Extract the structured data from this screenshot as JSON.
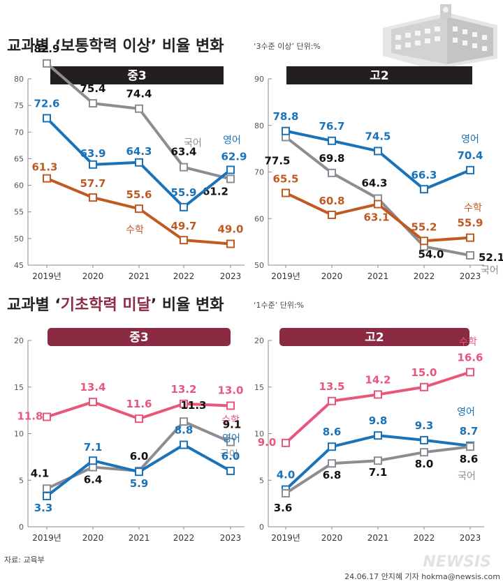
{
  "sections": [
    {
      "title_pre": "교과별 ‘",
      "title_hl": "보통학력 이상",
      "title_post": "’ 비율 변화",
      "unit": "‘3수준 이상’ 단위:%",
      "banner_color": "#231f20",
      "charts": [
        {
          "banner": "중3",
          "ylim": [
            45,
            80
          ],
          "ytick_step": 5,
          "x": [
            "2019년",
            "2020",
            "2021",
            "2022",
            "2023"
          ],
          "series": [
            {
              "name": "국어",
              "color": "#8c8c94",
              "values": [
                82.9,
                75.4,
                74.4,
                63.4,
                61.2
              ],
              "labels": [
                "82.9",
                "75.4",
                "74.4",
                "63.4",
                "61.2"
              ]
            },
            {
              "name": "영어",
              "color": "#1a72b9",
              "values": [
                72.6,
                63.9,
                64.3,
                55.9,
                62.9
              ],
              "labels": [
                "72.6",
                "63.9",
                "64.3",
                "55.9",
                "62.9"
              ]
            },
            {
              "name": "수학",
              "color": "#c05a23",
              "values": [
                61.3,
                57.7,
                55.6,
                49.7,
                49.0
              ],
              "labels": [
                "61.3",
                "57.7",
                "55.6",
                "49.7",
                "49.0"
              ]
            }
          ]
        },
        {
          "banner": "고2",
          "ylim": [
            50,
            90
          ],
          "ytick_step": 10,
          "x": [
            "2019년",
            "2020",
            "2021",
            "2022",
            "2023"
          ],
          "series": [
            {
              "name": "국어",
              "color": "#8c8c94",
              "values": [
                77.5,
                69.8,
                64.3,
                54.0,
                52.1
              ],
              "labels": [
                "77.5",
                "69.8",
                "64.3",
                "54.0",
                "52.1"
              ]
            },
            {
              "name": "영어",
              "color": "#1a72b9",
              "values": [
                78.8,
                76.7,
                74.5,
                66.3,
                70.4
              ],
              "labels": [
                "78.8",
                "76.7",
                "74.5",
                "66.3",
                "70.4"
              ]
            },
            {
              "name": "수학",
              "color": "#c05a23",
              "values": [
                65.5,
                60.8,
                63.1,
                55.2,
                55.9
              ],
              "labels": [
                "65.5",
                "60.8",
                "63.1",
                "55.2",
                "55.9"
              ]
            }
          ]
        }
      ]
    },
    {
      "title_pre": "교과별 ‘",
      "title_hl": "기초학력 미달",
      "title_post": "’ 비율 변화",
      "unit": "‘1수준’ 단위:%",
      "banner_color": "#8a2b43",
      "charts": [
        {
          "banner": "중3",
          "ylim": [
            0,
            20
          ],
          "ytick_step": 5,
          "x": [
            "2019년",
            "2020",
            "2021",
            "2022",
            "2023"
          ],
          "series": [
            {
              "name": "수학",
              "color": "#e9567b",
              "values": [
                11.8,
                13.4,
                11.6,
                13.2,
                13.0
              ],
              "labels": [
                "11.8",
                "13.4",
                "11.6",
                "13.2",
                "13.0"
              ]
            },
            {
              "name": "국어",
              "color": "#8c8c94",
              "values": [
                4.1,
                6.4,
                6.0,
                11.3,
                9.1
              ],
              "labels": [
                "4.1",
                "6.4",
                "6.0",
                "11.3",
                "9.1"
              ]
            },
            {
              "name": "영어",
              "color": "#1a72b9",
              "values": [
                3.3,
                7.1,
                5.9,
                8.8,
                6.0
              ],
              "labels": [
                "3.3",
                "7.1",
                "5.9",
                "8.8",
                "6.0"
              ]
            }
          ]
        },
        {
          "banner": "고2",
          "ylim": [
            0,
            20
          ],
          "ytick_step": 5,
          "x": [
            "2019년",
            "2020",
            "2021",
            "2022",
            "2023"
          ],
          "series": [
            {
              "name": "수학",
              "color": "#e9567b",
              "values": [
                9.0,
                13.5,
                14.2,
                15.0,
                16.6
              ],
              "labels": [
                "9.0",
                "13.5",
                "14.2",
                "15.0",
                "16.6"
              ]
            },
            {
              "name": "영어",
              "color": "#1a72b9",
              "values": [
                4.0,
                8.6,
                9.8,
                9.3,
                8.7
              ],
              "labels": [
                "4.0",
                "8.6",
                "9.8",
                "9.3",
                "8.7"
              ]
            },
            {
              "name": "국어",
              "color": "#8c8c94",
              "values": [
                3.6,
                6.8,
                7.1,
                8.0,
                8.6
              ],
              "labels": [
                "3.6",
                "6.8",
                "7.1",
                "8.0",
                "8.6"
              ]
            }
          ]
        }
      ]
    }
  ],
  "chart_data": [
    {
      "type": "line",
      "title": "중3",
      "x": [
        "2019년",
        "2020",
        "2021",
        "2022",
        "2023"
      ],
      "ylim": [
        45,
        80
      ],
      "series": [
        {
          "name": "국어",
          "values": [
            82.9,
            75.4,
            74.4,
            63.4,
            61.2
          ]
        },
        {
          "name": "영어",
          "values": [
            72.6,
            63.9,
            64.3,
            55.9,
            62.9
          ]
        },
        {
          "name": "수학",
          "values": [
            61.3,
            57.7,
            55.6,
            49.7,
            49.0
          ]
        }
      ]
    },
    {
      "type": "line",
      "title": "고2",
      "x": [
        "2019년",
        "2020",
        "2021",
        "2022",
        "2023"
      ],
      "ylim": [
        50,
        90
      ],
      "series": [
        {
          "name": "국어",
          "values": [
            77.5,
            69.8,
            64.3,
            54.0,
            52.1
          ]
        },
        {
          "name": "영어",
          "values": [
            78.8,
            76.7,
            74.5,
            66.3,
            70.4
          ]
        },
        {
          "name": "수학",
          "values": [
            65.5,
            60.8,
            63.1,
            55.2,
            55.9
          ]
        }
      ]
    },
    {
      "type": "line",
      "title": "중3",
      "x": [
        "2019년",
        "2020",
        "2021",
        "2022",
        "2023"
      ],
      "ylim": [
        0,
        20
      ],
      "series": [
        {
          "name": "수학",
          "values": [
            11.8,
            13.4,
            11.6,
            13.2,
            13.0
          ]
        },
        {
          "name": "국어",
          "values": [
            4.1,
            6.4,
            6.0,
            11.3,
            9.1
          ]
        },
        {
          "name": "영어",
          "values": [
            3.3,
            7.1,
            5.9,
            8.8,
            6.0
          ]
        }
      ]
    },
    {
      "type": "line",
      "title": "고2",
      "x": [
        "2019년",
        "2020",
        "2021",
        "2022",
        "2023"
      ],
      "ylim": [
        0,
        20
      ],
      "series": [
        {
          "name": "수학",
          "values": [
            9.0,
            13.5,
            14.2,
            15.0,
            16.6
          ]
        },
        {
          "name": "영어",
          "values": [
            4.0,
            8.6,
            9.8,
            9.3,
            8.7
          ]
        },
        {
          "name": "국어",
          "values": [
            3.6,
            6.8,
            7.1,
            8.0,
            8.6
          ]
        }
      ]
    }
  ],
  "footer": {
    "source": "자료: 교육부",
    "credit": "24.06.17 안지혜 기자 hokma@newsis.com",
    "logo": "NEWSIS"
  }
}
